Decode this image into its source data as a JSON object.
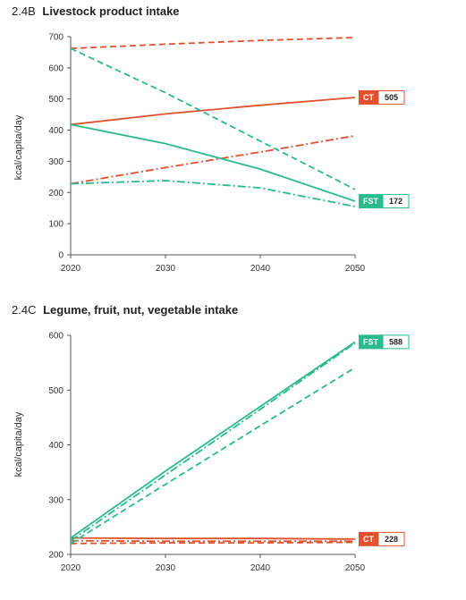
{
  "chart_data": [
    {
      "type": "line",
      "code": "2.4B",
      "title": "Livestock product intake",
      "ylabel": "kcal/capita/day",
      "xlabel": "",
      "x": [
        2020,
        2030,
        2040,
        2050
      ],
      "x_ticks": [
        "2020",
        "2030",
        "2040",
        "2050"
      ],
      "y_ticks": [
        "0",
        "100",
        "200",
        "300",
        "400",
        "500",
        "600",
        "700"
      ],
      "ylim": [
        0,
        700
      ],
      "xlim": [
        2020,
        2050
      ],
      "grid": false,
      "colors": {
        "CT": "#e0522f",
        "FST": "#2bb98e"
      },
      "series": [
        {
          "group": "CT",
          "style": "solid",
          "values": [
            418,
            452,
            480,
            505
          ]
        },
        {
          "group": "CT",
          "style": "dashed",
          "values": [
            662,
            676,
            688,
            697
          ]
        },
        {
          "group": "CT",
          "style": "dashdot",
          "values": [
            228,
            280,
            330,
            382
          ]
        },
        {
          "group": "FST",
          "style": "solid",
          "values": [
            418,
            357,
            275,
            172
          ]
        },
        {
          "group": "FST",
          "style": "dashed",
          "values": [
            662,
            520,
            365,
            210
          ]
        },
        {
          "group": "FST",
          "style": "dashdot",
          "values": [
            228,
            238,
            215,
            155
          ]
        }
      ],
      "end_labels": [
        {
          "group": "CT",
          "tag": "CT",
          "value": "505",
          "y": 505
        },
        {
          "group": "FST",
          "tag": "FST",
          "value": "172",
          "y": 172
        }
      ]
    },
    {
      "type": "line",
      "code": "2.4C",
      "title": "Legume, fruit, nut, vegetable intake",
      "ylabel": "kcal/capita/day",
      "xlabel": "",
      "x": [
        2020,
        2030,
        2040,
        2050
      ],
      "x_ticks": [
        "2020",
        "2030",
        "2040",
        "2050"
      ],
      "y_ticks": [
        "200",
        "300",
        "400",
        "500",
        "600"
      ],
      "ylim": [
        200,
        600
      ],
      "xlim": [
        2020,
        2050
      ],
      "grid": false,
      "colors": {
        "CT": "#e0522f",
        "FST": "#2bb98e"
      },
      "series": [
        {
          "group": "CT",
          "style": "solid",
          "values": [
            230,
            229,
            229,
            228
          ]
        },
        {
          "group": "CT",
          "style": "dashed",
          "values": [
            220,
            221,
            221,
            222
          ]
        },
        {
          "group": "CT",
          "style": "dashdot",
          "values": [
            225,
            224,
            224,
            224
          ]
        },
        {
          "group": "FST",
          "style": "solid",
          "values": [
            230,
            352,
            470,
            588
          ]
        },
        {
          "group": "FST",
          "style": "dashed",
          "values": [
            220,
            328,
            435,
            541
          ]
        },
        {
          "group": "FST",
          "style": "dashdot",
          "values": [
            225,
            345,
            465,
            586
          ]
        }
      ],
      "end_labels": [
        {
          "group": "FST",
          "tag": "FST",
          "value": "588",
          "y": 588
        },
        {
          "group": "CT",
          "tag": "CT",
          "value": "228",
          "y": 228
        }
      ]
    }
  ]
}
